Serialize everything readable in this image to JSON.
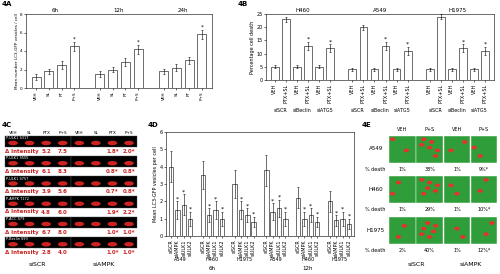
{
  "chart_data": [
    {
      "label": "4A",
      "type": "bar",
      "y_label": "Mean number LC3-GFP vesicles / cell",
      "color": "#ffffff",
      "ylim": [
        0,
        8
      ],
      "yticks": [
        0,
        2,
        4,
        6,
        8
      ],
      "annotation": "*",
      "groups": [
        {
          "name": "6h",
          "categories": [
            "VEH",
            "SL",
            "PT",
            "P+S"
          ],
          "values": [
            1.2,
            1.8,
            2.5,
            4.5
          ],
          "errors": [
            0.3,
            0.3,
            0.4,
            0.5
          ],
          "significant": [
            false,
            false,
            false,
            true
          ]
        },
        {
          "name": "12h",
          "categories": [
            "VEH",
            "SL",
            "PT",
            "P+S"
          ],
          "values": [
            1.5,
            2.0,
            2.8,
            4.2
          ],
          "errors": [
            0.3,
            0.3,
            0.4,
            0.5
          ],
          "significant": [
            false,
            false,
            false,
            true
          ]
        },
        {
          "name": "24h",
          "categories": [
            "VEH",
            "SL",
            "PT",
            "P+S"
          ],
          "values": [
            1.8,
            2.2,
            3.0,
            5.8
          ],
          "errors": [
            0.3,
            0.4,
            0.4,
            0.5
          ],
          "significant": [
            false,
            false,
            false,
            true
          ]
        }
      ]
    },
    {
      "label": "4B",
      "type": "bar",
      "y_label": "Percentage cell death",
      "color": "#ffffff",
      "ylim": [
        0,
        25
      ],
      "yticks": [
        0,
        5,
        10,
        15,
        20,
        25
      ],
      "annotation": "*",
      "subgroups": [
        "siSCR",
        "siBeclin",
        "siATG5"
      ],
      "groups": [
        {
          "name": "H460",
          "categories": [
            "VEH",
            "PTX+SL",
            "VEH",
            "PTX+SL",
            "VEH",
            "PTX+SL"
          ],
          "values": [
            5,
            23,
            5,
            13,
            5,
            12
          ],
          "errors": [
            0.5,
            1,
            0.5,
            1.5,
            0.5,
            1.5
          ],
          "significant": [
            false,
            false,
            false,
            true,
            false,
            true
          ]
        },
        {
          "name": "A549",
          "categories": [
            "VEH",
            "PTX+SL",
            "VEH",
            "PTX+SL",
            "VEH",
            "PTX+SL"
          ],
          "values": [
            4,
            20,
            4,
            13,
            4,
            11
          ],
          "errors": [
            0.5,
            1,
            0.5,
            1.5,
            0.5,
            1.5
          ],
          "significant": [
            false,
            false,
            false,
            true,
            false,
            true
          ]
        },
        {
          "name": "H1975",
          "categories": [
            "VEH",
            "PTX+SL",
            "VEH",
            "PTX+SL",
            "VEH",
            "PTX+SL"
          ],
          "values": [
            4,
            24,
            4,
            12,
            4,
            11
          ],
          "errors": [
            0.5,
            1,
            0.5,
            1.5,
            0.5,
            1.5
          ],
          "significant": [
            false,
            false,
            false,
            true,
            false,
            true
          ]
        }
      ]
    },
    {
      "label": "4D",
      "type": "bar",
      "y_label": "Mean LC3-GFP vesicles per cell",
      "color": "#ffffff",
      "ylim": [
        0,
        6
      ],
      "yticks": [
        0,
        1,
        2,
        3,
        4,
        5,
        6
      ],
      "annotation": "*",
      "times": [
        {
          "name": "6h",
          "groups": [
            {
              "name": "A549",
              "categories": [
                "siSCR",
                "siAMPK",
                "siULK1",
                "siULK2"
              ],
              "values": [
                4.0,
                1.5,
                1.8,
                1.0
              ],
              "errors": [
                0.9,
                0.5,
                0.6,
                0.4
              ],
              "significant": [
                false,
                true,
                true,
                true
              ]
            },
            {
              "name": "H460",
              "categories": [
                "siSCR",
                "siAMPK",
                "siULK1",
                "siULK2"
              ],
              "values": [
                3.5,
                1.2,
                1.5,
                1.0
              ],
              "errors": [
                0.8,
                0.4,
                0.5,
                0.4
              ],
              "significant": [
                false,
                true,
                true,
                true
              ]
            },
            {
              "name": "H1975",
              "categories": [
                "siSCR",
                "siAMPK",
                "siULK1",
                "siULK2"
              ],
              "values": [
                3.0,
                1.5,
                1.2,
                0.8
              ],
              "errors": [
                0.8,
                0.5,
                0.4,
                0.3
              ],
              "significant": [
                false,
                true,
                true,
                true
              ]
            }
          ]
        },
        {
          "name": "12h",
          "groups": [
            {
              "name": "A549",
              "categories": [
                "siSCR",
                "siAMPK",
                "siULK1",
                "siULK2"
              ],
              "values": [
                3.8,
                1.4,
                1.6,
                1.0
              ],
              "errors": [
                0.9,
                0.5,
                0.5,
                0.4
              ],
              "significant": [
                false,
                true,
                true,
                true
              ]
            },
            {
              "name": "H460",
              "categories": [
                "siSCR",
                "siAMPK",
                "siULK1",
                "siULK2"
              ],
              "values": [
                2.2,
                1.0,
                1.2,
                0.8
              ],
              "errors": [
                0.6,
                0.4,
                0.4,
                0.3
              ],
              "significant": [
                false,
                true,
                true,
                true
              ]
            },
            {
              "name": "H1975",
              "categories": [
                "siSCR",
                "siAMPK",
                "siULK1",
                "siULK2"
              ],
              "values": [
                2.0,
                0.9,
                1.0,
                0.7
              ],
              "errors": [
                0.6,
                0.3,
                0.4,
                0.3
              ],
              "significant": [
                false,
                true,
                true,
                true
              ]
            }
          ]
        }
      ]
    }
  ],
  "blots": {
    "label": "4C",
    "columns": [
      "VEH",
      "SL",
      "PTX",
      "P+S"
    ],
    "treatments": [
      "siSCR",
      "siAMPK"
    ],
    "delta_label": "Δ Intensity",
    "rows": [
      {
        "name": "P-ULK1 S317",
        "values": [
          "5.2",
          "7.5",
          "1.8*",
          "2.0*"
        ]
      },
      {
        "name": "P-ULK1 S555",
        "values": [
          "6.1",
          "8.3",
          "0.8*",
          "0.8*"
        ]
      },
      {
        "name": "P-ULK1 S757",
        "values": [
          "3.9",
          "5.6",
          "0.7*",
          "0.8*"
        ]
      },
      {
        "name": "P-AMPK T172",
        "values": [
          "4.8",
          "6.0",
          "1.9*",
          "2.2*"
        ]
      },
      {
        "name": "P-ACC S79",
        "values": [
          "6.7",
          "8.0",
          "1.0*",
          "1.0*"
        ]
      },
      {
        "name": "P-Beclin S93",
        "values": [
          "2.8",
          "4.0",
          "1.0*",
          "1.0*"
        ]
      }
    ]
  },
  "images": {
    "label": "4E",
    "treatments": [
      "siSCR",
      "siAMPK"
    ],
    "columns": [
      "VEH",
      "P+S"
    ],
    "death_label": "% death",
    "rows": [
      {
        "name": "A549",
        "values": [
          "1%",
          "38%",
          "1%",
          "9%*"
        ]
      },
      {
        "name": "H460",
        "values": [
          "1%",
          "29%",
          "1%",
          "10%*"
        ]
      },
      {
        "name": "H1975",
        "values": [
          "2%",
          "40%",
          "1%",
          "12%*"
        ]
      }
    ]
  }
}
